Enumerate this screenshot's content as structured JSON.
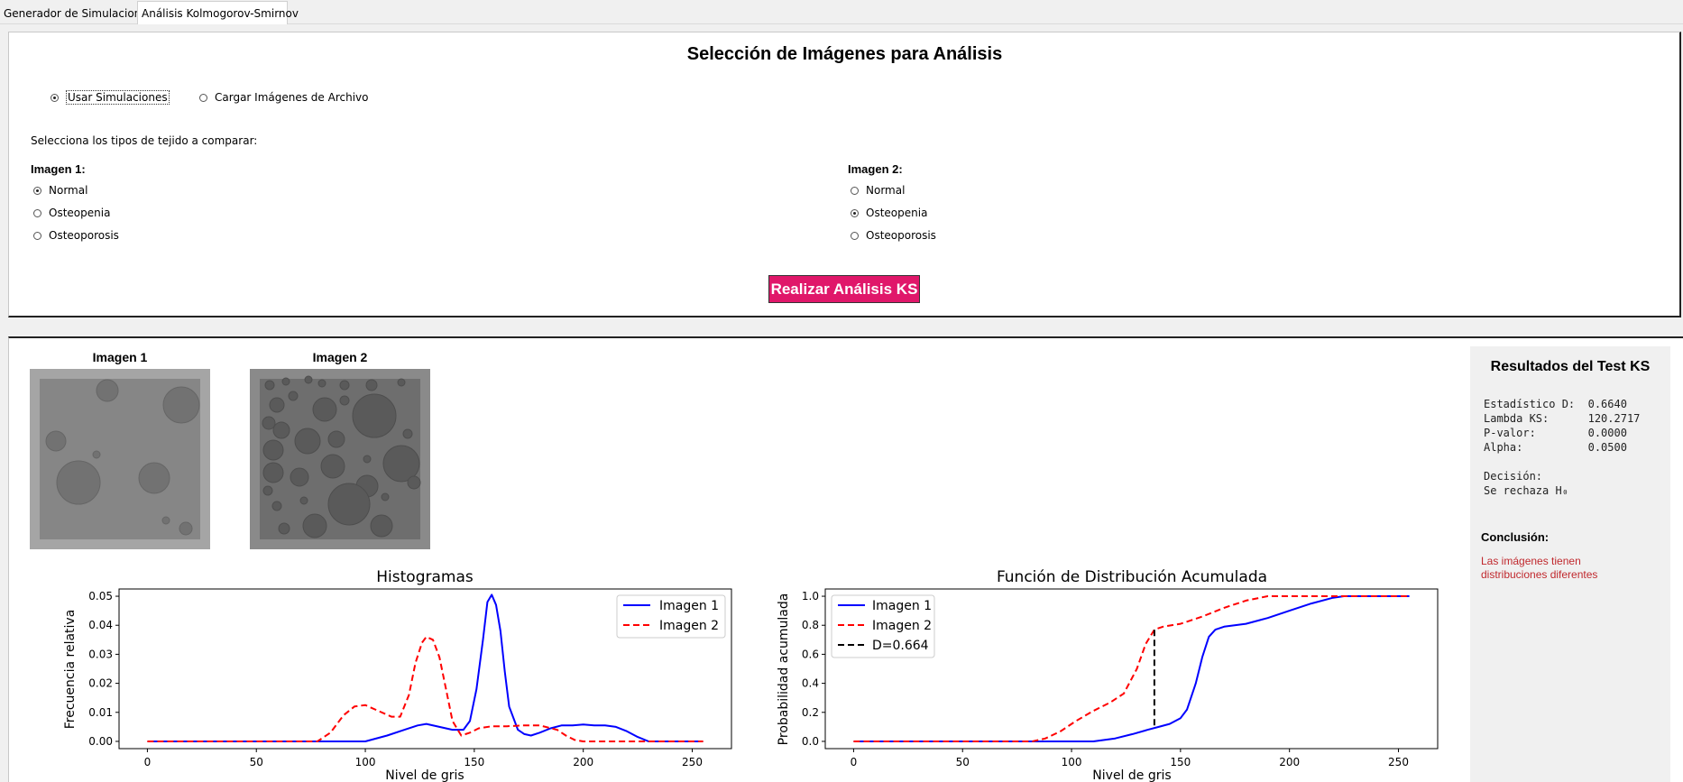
{
  "tabs": [
    {
      "label": "Generador de Simulaciones"
    },
    {
      "label": "Análisis Kolmogorov-Smirnov"
    }
  ],
  "selection": {
    "title": "Selección de Imágenes para Análisis",
    "source_options": [
      "Usar Simulaciones",
      "Cargar Imágenes de Archivo"
    ],
    "source_selected": "Usar Simulaciones",
    "prompt": "Selecciona los tipos de tejido a comparar:",
    "image1": {
      "label": "Imagen 1:",
      "options": [
        "Normal",
        "Osteopenia",
        "Osteoporosis"
      ],
      "selected": "Normal"
    },
    "image2": {
      "label": "Imagen 2:",
      "options": [
        "Normal",
        "Osteopenia",
        "Osteoporosis"
      ],
      "selected": "Osteopenia"
    },
    "analyze_button": "Realizar Análisis KS"
  },
  "preview": {
    "image1_title": "Imagen 1",
    "image2_title": "Imagen 2"
  },
  "results": {
    "title": "Resultados del Test KS",
    "stats_lines": [
      "Estadístico D:  0.6640",
      "Lambda KS:      120.2717",
      "P-valor:        0.0000",
      "Alpha:          0.0500",
      "",
      "Decisión:",
      "Se rechaza H₀"
    ],
    "conclusion_label": "Conclusión:",
    "conclusion_text": "Las imágenes tienen distribuciones diferentes"
  },
  "colors": {
    "accent": "#e0176a",
    "series1": "#0000ff",
    "series2": "#ff0000",
    "conclusion": "#c0282d"
  },
  "chart_data": [
    {
      "type": "line",
      "title": "Histogramas",
      "xlabel": "Nivel de gris",
      "ylabel": "Frecuencia relativa",
      "xlim": [
        -13,
        268
      ],
      "ylim": [
        -0.0025,
        0.0525
      ],
      "xticks": [
        0,
        50,
        100,
        150,
        200,
        250
      ],
      "yticks": [
        0.0,
        0.01,
        0.02,
        0.03,
        0.04,
        0.05
      ],
      "ytick_labels": [
        "0.00",
        "0.01",
        "0.02",
        "0.03",
        "0.04",
        "0.05"
      ],
      "legend": "top-right",
      "series": [
        {
          "name": "Imagen 1",
          "style": "solid",
          "color": "#0000ff",
          "x": [
            0,
            100,
            110,
            118,
            124,
            128,
            134,
            140,
            145,
            148,
            151,
            154,
            156,
            158,
            160,
            162,
            164,
            166,
            170,
            173,
            176,
            180,
            185,
            190,
            195,
            200,
            205,
            210,
            215,
            220,
            225,
            230,
            255
          ],
          "y": [
            0,
            0,
            0.002,
            0.004,
            0.0055,
            0.006,
            0.005,
            0.004,
            0.004,
            0.007,
            0.018,
            0.035,
            0.048,
            0.0505,
            0.047,
            0.038,
            0.024,
            0.012,
            0.004,
            0.0025,
            0.002,
            0.003,
            0.0045,
            0.0055,
            0.0055,
            0.0058,
            0.0055,
            0.0055,
            0.005,
            0.0035,
            0.0015,
            0,
            0
          ]
        },
        {
          "name": "Imagen 2",
          "style": "dashed",
          "color": "#ff0000",
          "x": [
            0,
            78,
            84,
            90,
            95,
            100,
            106,
            112,
            116,
            120,
            123,
            126,
            128,
            131,
            134,
            137,
            140,
            144,
            148,
            152,
            158,
            165,
            172,
            180,
            188,
            192,
            196,
            200,
            255
          ],
          "y": [
            0,
            0,
            0.003,
            0.009,
            0.012,
            0.0125,
            0.0105,
            0.0085,
            0.0085,
            0.016,
            0.027,
            0.034,
            0.036,
            0.035,
            0.029,
            0.018,
            0.007,
            0.002,
            0.003,
            0.0045,
            0.0052,
            0.0052,
            0.0055,
            0.0055,
            0.004,
            0.002,
            0.0005,
            0,
            0
          ]
        }
      ]
    },
    {
      "type": "line",
      "title": "Función de Distribución Acumulada",
      "xlabel": "Nivel de gris",
      "ylabel": "Probabilidad acumulada",
      "xlim": [
        -13,
        268
      ],
      "ylim": [
        -0.05,
        1.05
      ],
      "xticks": [
        0,
        50,
        100,
        150,
        200,
        250
      ],
      "yticks": [
        0.0,
        0.2,
        0.4,
        0.6,
        0.8,
        1.0
      ],
      "ytick_labels": [
        "0.0",
        "0.2",
        "0.4",
        "0.6",
        "0.8",
        "1.0"
      ],
      "legend": "top-left",
      "series": [
        {
          "name": "Imagen 1",
          "style": "solid",
          "color": "#0000ff",
          "x": [
            0,
            110,
            120,
            128,
            135,
            140,
            145,
            150,
            153,
            157,
            160,
            163,
            166,
            170,
            180,
            190,
            200,
            210,
            220,
            225,
            255
          ],
          "y": [
            0,
            0,
            0.02,
            0.05,
            0.08,
            0.1,
            0.12,
            0.16,
            0.22,
            0.4,
            0.58,
            0.72,
            0.77,
            0.79,
            0.81,
            0.85,
            0.9,
            0.95,
            0.99,
            1.0,
            1.0
          ]
        },
        {
          "name": "Imagen 2",
          "style": "dashed",
          "color": "#ff0000",
          "x": [
            0,
            82,
            88,
            95,
            102,
            110,
            118,
            124,
            130,
            134,
            138,
            142,
            150,
            160,
            170,
            180,
            190,
            200,
            255
          ],
          "y": [
            0,
            0,
            0.02,
            0.07,
            0.14,
            0.21,
            0.27,
            0.33,
            0.5,
            0.67,
            0.77,
            0.79,
            0.81,
            0.86,
            0.92,
            0.97,
            1.0,
            1.0,
            1.0
          ]
        },
        {
          "name": "D=0.664",
          "style": "dashed",
          "color": "#000000",
          "x": [
            138,
            138
          ],
          "y": [
            0.11,
            0.774
          ]
        }
      ]
    }
  ]
}
